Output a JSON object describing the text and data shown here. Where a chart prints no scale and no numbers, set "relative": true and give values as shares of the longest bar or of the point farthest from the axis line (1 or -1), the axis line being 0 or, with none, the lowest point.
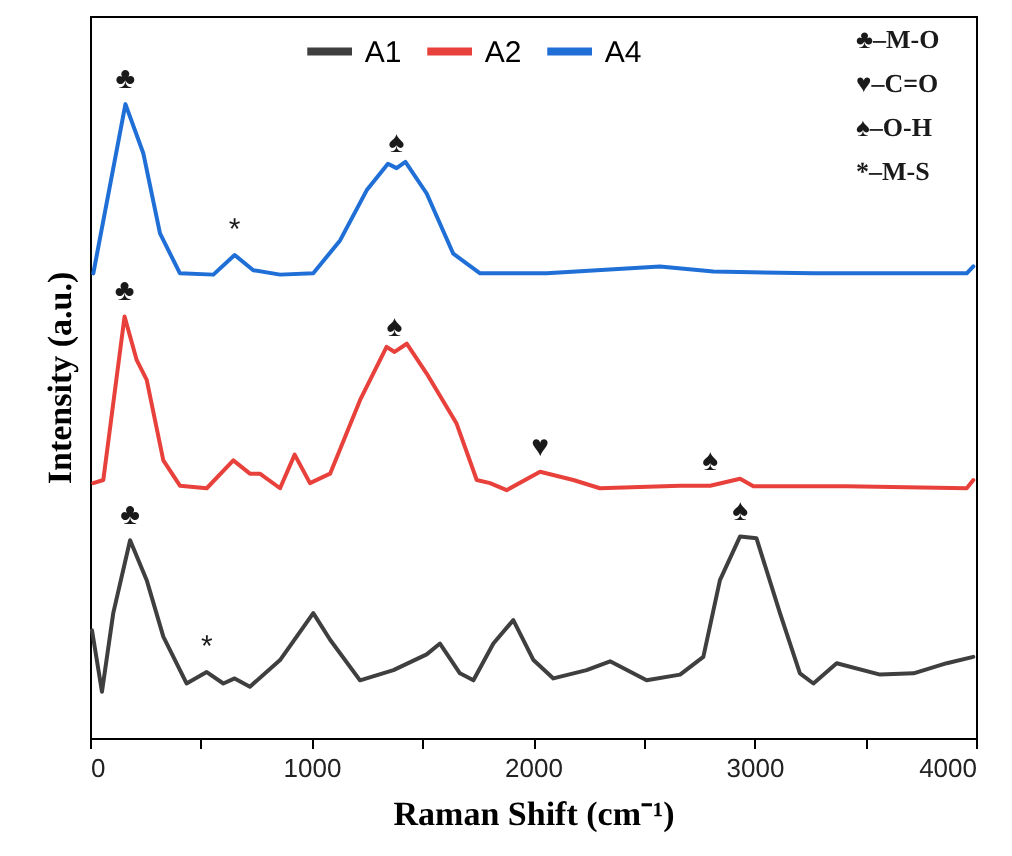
{
  "chart_data": {
    "type": "line",
    "relative": true,
    "xlabel": "Raman Shift (cm⁻¹)",
    "ylabel": "Intensity (a.u.)",
    "xlim": [
      0,
      4000
    ],
    "xticks": [
      0,
      {
        "value": 500,
        "label": null
      },
      1000,
      {
        "value": 1500,
        "label": null
      },
      2000,
      {
        "value": 2500,
        "label": null
      },
      3000,
      {
        "value": 3500,
        "label": null
      },
      4000
    ],
    "legend": "top",
    "grid": false,
    "series": [
      {
        "name": "A1",
        "color": "#3f3f3f",
        "x": [
          9,
          54,
          105,
          181,
          256,
          331,
          436,
          527,
          602,
          653,
          722,
          858,
          1008,
          1084,
          1219,
          1370,
          1520,
          1580,
          1670,
          1731,
          1821,
          1911,
          2002,
          2092,
          2242,
          2348,
          2513,
          2664,
          2769,
          2844,
          2935,
          3009,
          3115,
          3205,
          3266,
          3371,
          3567,
          3718,
          3868,
          3988
        ],
        "values": [
          0.17,
          0.073,
          0.197,
          0.312,
          0.249,
          0.16,
          0.086,
          0.104,
          0.086,
          0.094,
          0.081,
          0.123,
          0.197,
          0.155,
          0.091,
          0.107,
          0.132,
          0.149,
          0.102,
          0.091,
          0.149,
          0.186,
          0.123,
          0.094,
          0.107,
          0.121,
          0.091,
          0.1,
          0.128,
          0.249,
          0.318,
          0.315,
          0.197,
          0.102,
          0.086,
          0.118,
          0.1,
          0.102,
          0.118,
          0.128
        ]
      },
      {
        "name": "A2",
        "color": "#e8413c",
        "x": [
          15,
          60,
          156,
          211,
          256,
          331,
          406,
          527,
          647,
          722,
          767,
          858,
          924,
          993,
          1084,
          1219,
          1339,
          1375,
          1430,
          1520,
          1655,
          1746,
          1806,
          1881,
          2032,
          2182,
          2302,
          2664,
          2800,
          2935,
          2995,
          3416,
          3958,
          3988
        ],
        "values": [
          0.402,
          0.407,
          0.665,
          0.596,
          0.565,
          0.438,
          0.398,
          0.394,
          0.438,
          0.417,
          0.417,
          0.394,
          0.447,
          0.402,
          0.417,
          0.533,
          0.617,
          0.609,
          0.622,
          0.575,
          0.496,
          0.407,
          0.402,
          0.391,
          0.42,
          0.407,
          0.394,
          0.398,
          0.398,
          0.409,
          0.397,
          0.397,
          0.394,
          0.407
        ]
      },
      {
        "name": "A4",
        "color": "#1f6fd6",
        "x": [
          15,
          160,
          241,
          316,
          406,
          557,
          653,
          737,
          858,
          1008,
          1129,
          1249,
          1345,
          1384,
          1424,
          1520,
          1640,
          1761,
          2062,
          2573,
          2814,
          3266,
          3958,
          3988
        ],
        "values": [
          0.733,
          1.0,
          0.922,
          0.796,
          0.733,
          0.731,
          0.762,
          0.738,
          0.731,
          0.733,
          0.785,
          0.864,
          0.906,
          0.899,
          0.909,
          0.859,
          0.764,
          0.733,
          0.733,
          0.744,
          0.736,
          0.733,
          0.733,
          0.744
        ]
      }
    ],
    "annotations": [
      {
        "text": "♣",
        "x": 160,
        "y": 1.0
      },
      {
        "text": "*",
        "x": 653,
        "y": 0.762
      },
      {
        "text": "♠",
        "x": 1384,
        "y": 0.899
      },
      {
        "text": "♣",
        "x": 156,
        "y": 0.665
      },
      {
        "text": "♠",
        "x": 1375,
        "y": 0.609
      },
      {
        "text": "♥",
        "x": 2032,
        "y": 0.42
      },
      {
        "text": "♠",
        "x": 2800,
        "y": 0.398
      },
      {
        "text": "♣",
        "x": 181,
        "y": 0.312
      },
      {
        "text": "*",
        "x": 527,
        "y": 0.104
      },
      {
        "text": "♠",
        "x": 2935,
        "y": 0.318
      },
      "♣–M-O",
      "♥–C=O",
      "♠–O-H",
      "*–M-S"
    ]
  }
}
